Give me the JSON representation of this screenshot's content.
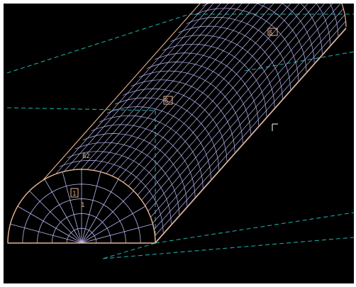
{
  "scene": {
    "background": "#000000",
    "frame_color": "#ffffff",
    "colors": {
      "mesh": "#b9b7f2",
      "mesh_edge": "#e7b48f",
      "construction": "#1aa7a0",
      "label": "#e7b48f",
      "cursor": "#ffffff"
    },
    "mesh": {
      "shape": "half-cylinder",
      "radial_divisions": 12,
      "rings": 5,
      "length_segments": 24
    },
    "labels": [
      {
        "id": "top",
        "text": "ß"
      },
      {
        "id": "middle",
        "text": "ß"
      },
      {
        "id": "front-arc",
        "text": "ß2"
      },
      {
        "id": "front-node",
        "text": "1"
      },
      {
        "id": "front-node-sub",
        "text": "1"
      }
    ],
    "cursor_icon": "crosshair-cursor-icon"
  }
}
